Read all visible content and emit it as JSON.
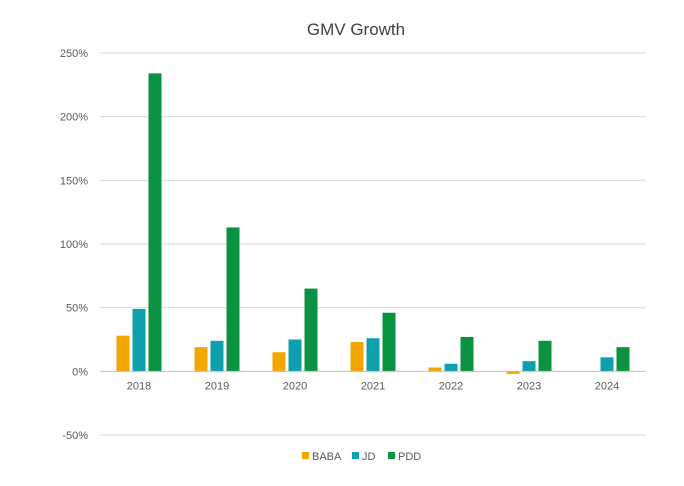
{
  "chart_data": {
    "type": "bar",
    "title": "GMV Growth",
    "xlabel": "",
    "ylabel": "",
    "categories": [
      "2018",
      "2019",
      "2020",
      "2021",
      "2022",
      "2023",
      "2024"
    ],
    "series": [
      {
        "name": "BABA",
        "color": "#f2a600",
        "values": [
          28,
          19,
          15,
          23,
          3,
          -2,
          null
        ]
      },
      {
        "name": "JD",
        "color": "#0fa0ae",
        "values": [
          49,
          24,
          25,
          26,
          6,
          8,
          11
        ]
      },
      {
        "name": "PDD",
        "color": "#0a9241",
        "values": [
          234,
          113,
          65,
          46,
          27,
          24,
          19
        ]
      }
    ],
    "yticks": [
      "250%",
      "200%",
      "150%",
      "100%",
      "50%",
      "0%",
      "-50%"
    ],
    "ylim": [
      -50,
      250
    ],
    "y_unit": "%",
    "grid": true,
    "legend_position": "bottom"
  }
}
